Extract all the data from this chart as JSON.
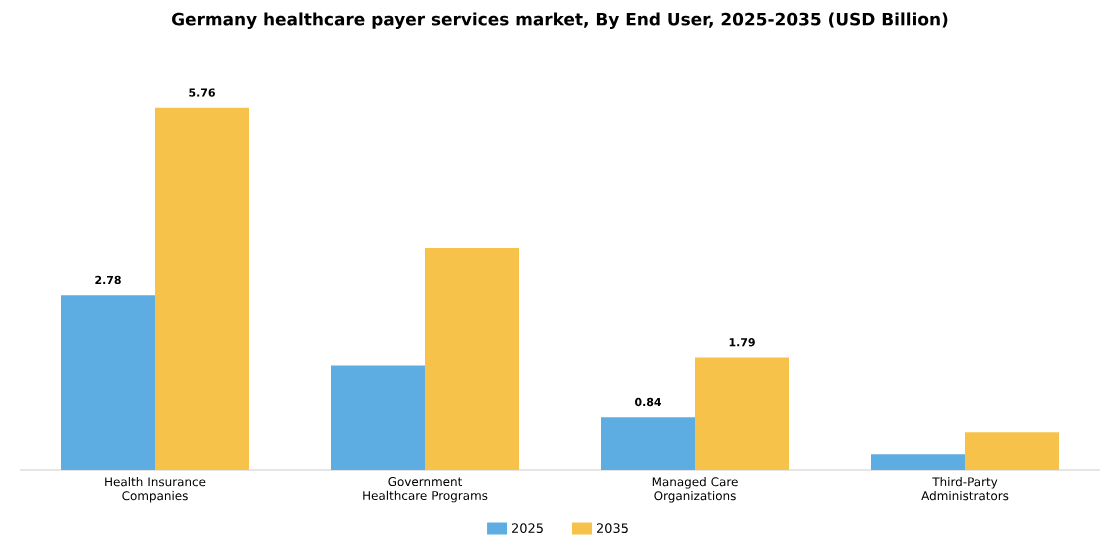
{
  "chart_data": {
    "type": "bar",
    "title": "Germany healthcare payer services market, By End User, 2025-2035 (USD Billion)",
    "categories": [
      "Health Insurance Companies",
      "Government Healthcare Programs",
      "Managed Care Organizations",
      "Third-Party Administrators"
    ],
    "series": [
      {
        "name": "2025",
        "color": "#5dade2",
        "values": [
          2.78,
          1.66,
          0.84,
          0.25
        ],
        "value_labels": [
          "2.78",
          null,
          "0.84",
          null
        ]
      },
      {
        "name": "2035",
        "color": "#f7c24a",
        "values": [
          5.76,
          3.53,
          1.79,
          0.6
        ],
        "value_labels": [
          "5.76",
          null,
          "1.79",
          null
        ]
      }
    ],
    "legend": "bottom"
  }
}
